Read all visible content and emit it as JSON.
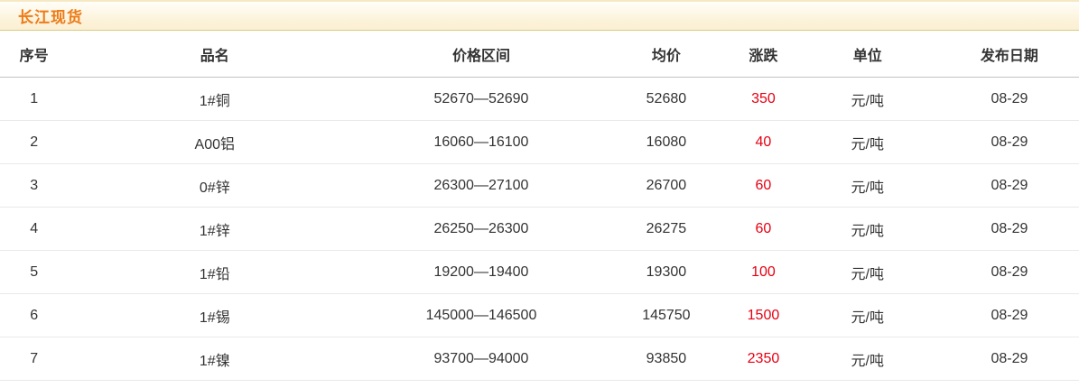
{
  "title": "长江现货",
  "colors": {
    "title_text": "#ed7b17",
    "title_bar_border_bottom": "#d9ca7c",
    "title_bar_bg": "#fcf2d9",
    "header_border": "#c3c3c3",
    "row_divider": "#e9e9e9",
    "change_up": "#e60012",
    "body_text": "#333333"
  },
  "table": {
    "columns": [
      {
        "key": "no",
        "label": "序号"
      },
      {
        "key": "name",
        "label": "品名"
      },
      {
        "key": "range",
        "label": "价格区间"
      },
      {
        "key": "avg",
        "label": "均价"
      },
      {
        "key": "change",
        "label": "涨跌"
      },
      {
        "key": "unit",
        "label": "单位"
      },
      {
        "key": "date",
        "label": "发布日期"
      }
    ],
    "column_widths_pct": [
      6.3,
      27.2,
      22.2,
      12.1,
      5.9,
      13.4,
      12.9
    ],
    "rows": [
      [
        "1",
        "1#铜",
        "52670—52690",
        "52680",
        "350",
        "元/吨",
        "08-29"
      ],
      [
        "2",
        "A00铝",
        "16060—16100",
        "16080",
        "40",
        "元/吨",
        "08-29"
      ],
      [
        "3",
        "0#锌",
        "26300—27100",
        "26700",
        "60",
        "元/吨",
        "08-29"
      ],
      [
        "4",
        "1#锌",
        "26250—26300",
        "26275",
        "60",
        "元/吨",
        "08-29"
      ],
      [
        "5",
        "1#铅",
        "19200—19400",
        "19300",
        "100",
        "元/吨",
        "08-29"
      ],
      [
        "6",
        "1#锡",
        "145000—146500",
        "145750",
        "1500",
        "元/吨",
        "08-29"
      ],
      [
        "7",
        "1#镍",
        "93700—94000",
        "93850",
        "2350",
        "元/吨",
        "08-29"
      ]
    ]
  }
}
